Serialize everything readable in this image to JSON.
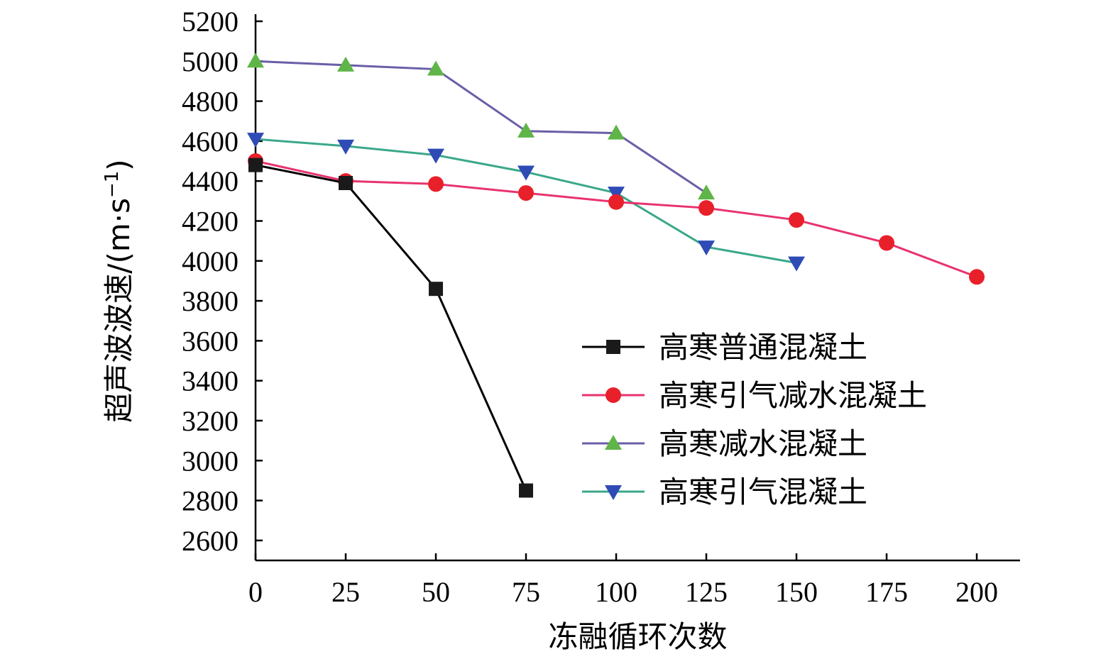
{
  "chart_data": {
    "type": "line",
    "title": "",
    "xlabel": "冻融循环次数",
    "ylabel": "超声波波速/(m·s",
    "ylabel_sup": "−1",
    "ylabel_close": ")",
    "xlim": [
      0,
      212
    ],
    "ylim": [
      2500,
      5200
    ],
    "x_ticks": [
      0,
      25,
      50,
      75,
      100,
      125,
      150,
      175,
      200
    ],
    "y_ticks": [
      2600,
      2800,
      3000,
      3200,
      3400,
      3600,
      3800,
      4000,
      4200,
      4400,
      4600,
      4800,
      5000,
      5200
    ],
    "grid": false,
    "legend_position": "lower-right",
    "series": [
      {
        "name": "高寒普通混凝土",
        "line_color": "#000000",
        "marker": "square",
        "marker_color": "#1a1a1a",
        "x": [
          0,
          25,
          50,
          75
        ],
        "y": [
          4480,
          4390,
          3860,
          2850
        ]
      },
      {
        "name": "高寒引气减水混凝土",
        "line_color": "#e8336e",
        "marker": "circle",
        "marker_color": "#e8202a",
        "x": [
          0,
          25,
          50,
          75,
          100,
          125,
          150,
          175,
          200
        ],
        "y": [
          4500,
          4400,
          4385,
          4340,
          4295,
          4265,
          4205,
          4090,
          3920
        ]
      },
      {
        "name": "高寒减水混凝土",
        "line_color": "#6a5ea8",
        "marker": "triangle-up",
        "marker_color": "#5fb548",
        "x": [
          0,
          25,
          50,
          75,
          100,
          125
        ],
        "y": [
          5000,
          4980,
          4960,
          4650,
          4640,
          4340
        ]
      },
      {
        "name": "高寒引气混凝土",
        "line_color": "#3aa88a",
        "marker": "triangle-down",
        "marker_color": "#2f4bb5",
        "x": [
          0,
          25,
          50,
          75,
          100,
          125,
          150
        ],
        "y": [
          4610,
          4575,
          4530,
          4445,
          4340,
          4070,
          3990
        ]
      }
    ]
  }
}
